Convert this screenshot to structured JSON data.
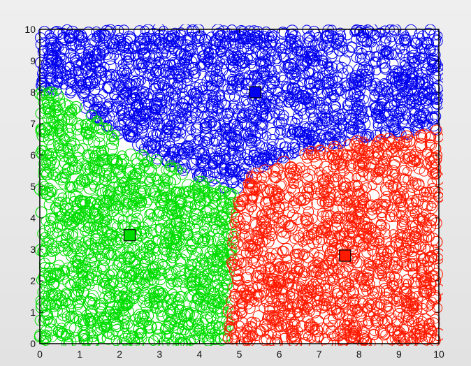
{
  "chart_data": {
    "type": "scatter",
    "title": "",
    "xlabel": "",
    "ylabel": "",
    "xlim": [
      0,
      10
    ],
    "ylim": [
      0,
      10
    ],
    "x_ticks": [
      "0",
      "1",
      "2",
      "3",
      "4",
      "5",
      "6",
      "7",
      "8",
      "9",
      "10"
    ],
    "y_ticks": [
      "0",
      "1",
      "2",
      "3",
      "4",
      "5",
      "6",
      "7",
      "8",
      "9",
      "10"
    ],
    "grid": false,
    "legend": "none",
    "points_per_cluster_approx": 2000,
    "marker": "circle (hollow)",
    "centroid_marker": "square (filled)",
    "clusters": [
      {
        "color": "#0000ee",
        "centroid": [
          5.4,
          8.0
        ],
        "region_polygon": [
          [
            0,
            10
          ],
          [
            10,
            10
          ],
          [
            10,
            6.8
          ],
          [
            8.5,
            6.55
          ],
          [
            7,
            6.25
          ],
          [
            5.5,
            5.6
          ],
          [
            4.9,
            4.75
          ],
          [
            2.5,
            6.1
          ],
          [
            0.5,
            8.0
          ],
          [
            0,
            8.1
          ]
        ]
      },
      {
        "color": "#00dd00",
        "centroid": [
          2.25,
          3.45
        ],
        "region_polygon": [
          [
            0,
            8.1
          ],
          [
            0.5,
            8.0
          ],
          [
            2.5,
            6.1
          ],
          [
            4.9,
            4.75
          ],
          [
            4.8,
            2.5
          ],
          [
            4.7,
            0
          ],
          [
            0,
            0
          ]
        ]
      },
      {
        "color": "#ff1a00",
        "centroid": [
          7.65,
          2.8
        ],
        "region_polygon": [
          [
            4.9,
            4.75
          ],
          [
            5.5,
            5.6
          ],
          [
            7,
            6.25
          ],
          [
            8.5,
            6.55
          ],
          [
            10,
            6.8
          ],
          [
            10,
            0
          ],
          [
            4.7,
            0
          ],
          [
            4.8,
            2.5
          ]
        ]
      }
    ]
  }
}
